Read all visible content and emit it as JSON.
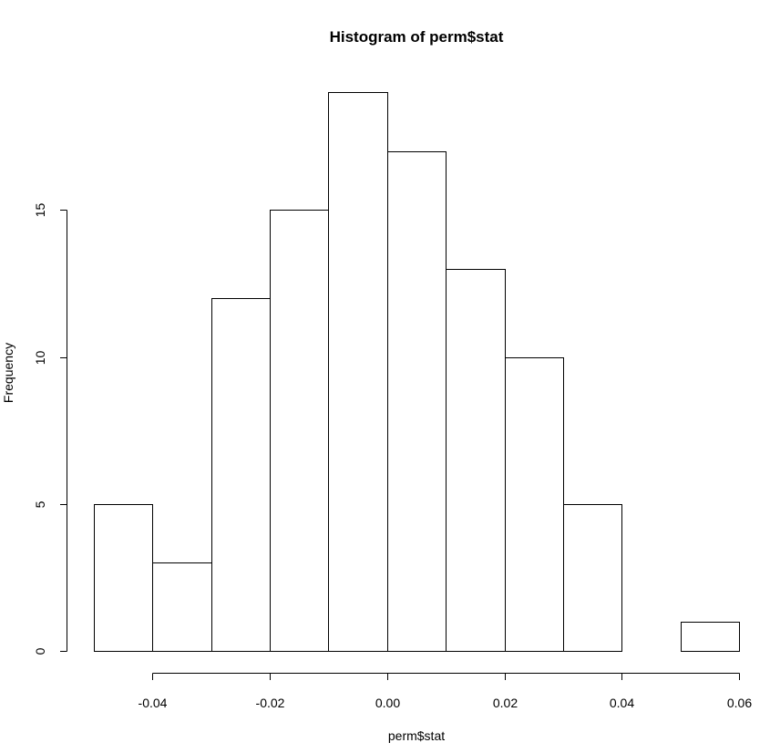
{
  "chart_data": {
    "type": "bar",
    "title": "Histogram of perm$stat",
    "xlabel": "perm$stat",
    "ylabel": "Frequency",
    "bins": [
      {
        "start": -0.05,
        "end": -0.04,
        "count": 5
      },
      {
        "start": -0.04,
        "end": -0.03,
        "count": 3
      },
      {
        "start": -0.03,
        "end": -0.02,
        "count": 12
      },
      {
        "start": -0.02,
        "end": -0.01,
        "count": 15
      },
      {
        "start": -0.01,
        "end": 0.0,
        "count": 19
      },
      {
        "start": 0.0,
        "end": 0.01,
        "count": 17
      },
      {
        "start": 0.01,
        "end": 0.02,
        "count": 13
      },
      {
        "start": 0.02,
        "end": 0.03,
        "count": 10
      },
      {
        "start": 0.03,
        "end": 0.04,
        "count": 5
      },
      {
        "start": 0.04,
        "end": 0.05,
        "count": 0
      },
      {
        "start": 0.05,
        "end": 0.06,
        "count": 1
      }
    ],
    "x_ticks": [
      {
        "value": -0.04,
        "label": "-0.04"
      },
      {
        "value": -0.02,
        "label": "-0.02"
      },
      {
        "value": 0.0,
        "label": "0.00"
      },
      {
        "value": 0.02,
        "label": "0.02"
      },
      {
        "value": 0.04,
        "label": "0.04"
      },
      {
        "value": 0.06,
        "label": "0.06"
      }
    ],
    "y_ticks": [
      {
        "value": 0,
        "label": "0"
      },
      {
        "value": 5,
        "label": "5"
      },
      {
        "value": 10,
        "label": "10"
      },
      {
        "value": 15,
        "label": "15"
      }
    ],
    "xlim": [
      -0.05,
      0.06
    ],
    "ylim": [
      0,
      19
    ],
    "grid": false,
    "colors": {
      "bar_fill": "#ffffff",
      "bar_stroke": "#000000"
    }
  }
}
